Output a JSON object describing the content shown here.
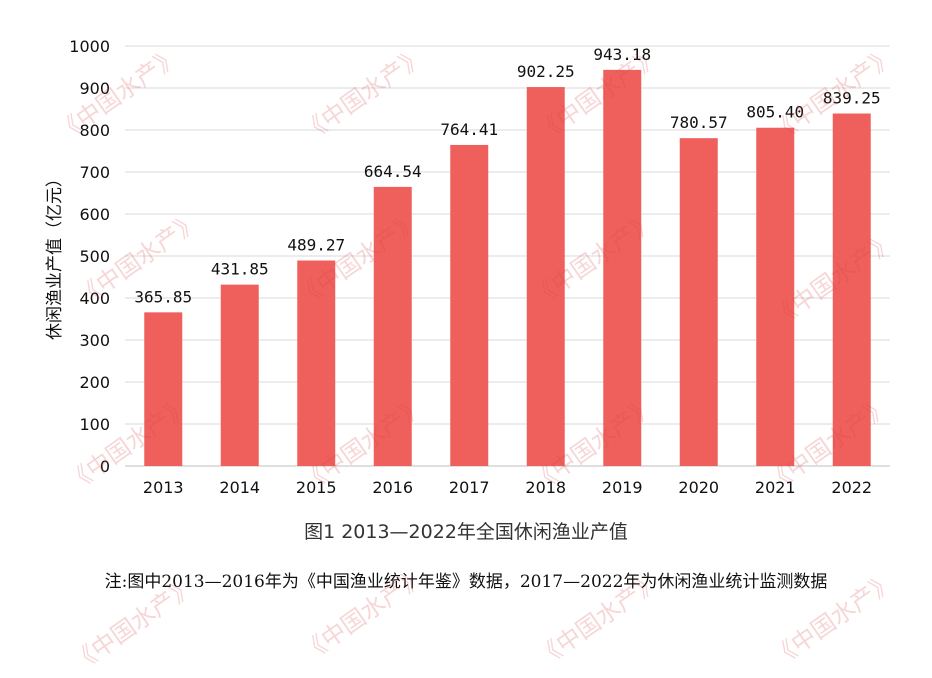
{
  "chart_data": {
    "type": "bar",
    "categories": [
      "2013",
      "2014",
      "2015",
      "2016",
      "2017",
      "2018",
      "2019",
      "2020",
      "2021",
      "2022"
    ],
    "values": [
      365.85,
      431.85,
      489.27,
      664.54,
      764.41,
      902.25,
      943.18,
      780.57,
      805.4,
      839.25
    ],
    "value_labels": [
      "365.85",
      "431.85",
      "489.27",
      "664.54",
      "764.41",
      "902.25",
      "943.18",
      "780.57",
      "805.40",
      "839.25"
    ],
    "ylabel": "休闲渔业产值（亿元）",
    "ylim": [
      0,
      1000
    ],
    "yticks": [
      0,
      100,
      200,
      300,
      400,
      500,
      600,
      700,
      800,
      900,
      1000
    ],
    "grid": true,
    "bar_color": "#ef605c",
    "grid_color": "#d9d9d9"
  },
  "caption": "图1  2013—2022年全国休闲渔业产值",
  "note": "注:图中2013—2016年为《中国渔业统计年鉴》数据，2017—2022年为休闲渔业统计监测数据",
  "watermark": "《中国水产》"
}
